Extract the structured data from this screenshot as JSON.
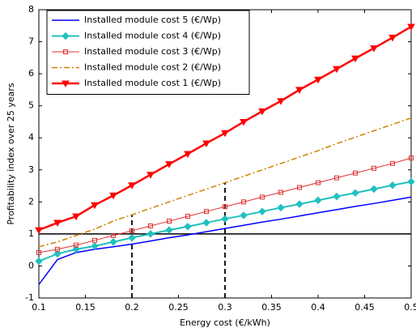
{
  "chart_data": {
    "type": "line",
    "x_label": "Energy cost (€/kWh)",
    "y_label": "Profitability index over 25 years",
    "x": [
      0.1,
      0.12,
      0.14,
      0.16,
      0.18,
      0.2,
      0.22,
      0.24,
      0.26,
      0.28,
      0.3,
      0.32,
      0.34,
      0.36,
      0.38,
      0.4,
      0.42,
      0.44,
      0.46,
      0.48,
      0.5
    ],
    "series": [
      {
        "name": "Installed module cost 5 (€/Wp)",
        "color": "#0000ff",
        "marker": "none",
        "dash": "solid",
        "width": 1.5,
        "values": [
          -0.58,
          0.2,
          0.42,
          0.52,
          0.6,
          0.68,
          0.78,
          0.88,
          0.97,
          1.07,
          1.17,
          1.27,
          1.37,
          1.46,
          1.56,
          1.66,
          1.76,
          1.86,
          1.95,
          2.05,
          2.15
        ]
      },
      {
        "name": "Installed module cost 4 (€/Wp)",
        "color": "#20c0c0",
        "marker": "diamond",
        "dash": "solid",
        "width": 2,
        "values": [
          0.15,
          0.38,
          0.52,
          0.62,
          0.75,
          0.88,
          1.0,
          1.12,
          1.23,
          1.35,
          1.47,
          1.58,
          1.7,
          1.82,
          1.93,
          2.05,
          2.17,
          2.28,
          2.4,
          2.52,
          2.63
        ]
      },
      {
        "name": "Installed module cost 3 (€/Wp)",
        "color": "#e03030",
        "marker": "square",
        "dash": "solid",
        "width": 1,
        "values": [
          0.42,
          0.52,
          0.65,
          0.8,
          0.95,
          1.1,
          1.25,
          1.4,
          1.55,
          1.7,
          1.85,
          2.0,
          2.15,
          2.3,
          2.45,
          2.6,
          2.75,
          2.9,
          3.05,
          3.2,
          3.37
        ]
      },
      {
        "name": "Installed module cost 2 (€/Wp)",
        "color": "#d08000",
        "marker": "none",
        "dash": "dashdot",
        "width": 1.5,
        "values": [
          0.6,
          0.75,
          0.95,
          1.15,
          1.4,
          1.6,
          1.8,
          2.0,
          2.2,
          2.4,
          2.6,
          2.8,
          3.0,
          3.2,
          3.4,
          3.6,
          3.82,
          4.02,
          4.22,
          4.42,
          4.62
        ]
      },
      {
        "name": "Installed module cost 1 (€/Wp)",
        "color": "#ff0000",
        "marker": "triangle-down",
        "dash": "solid",
        "width": 2.5,
        "values": [
          1.12,
          1.35,
          1.55,
          1.9,
          2.2,
          2.52,
          2.85,
          3.18,
          3.5,
          3.83,
          4.15,
          4.5,
          4.83,
          5.15,
          5.5,
          5.82,
          6.15,
          6.48,
          6.8,
          7.13,
          7.47
        ]
      }
    ],
    "xlim": [
      0.1,
      0.5
    ],
    "xticks": [
      0.1,
      0.15,
      0.2,
      0.25,
      0.3,
      0.35,
      0.4,
      0.45,
      0.5
    ],
    "ylim": [
      -1,
      8
    ],
    "yticks": [
      -1,
      0,
      1,
      2,
      3,
      4,
      5,
      6,
      7,
      8
    ],
    "hline": 1,
    "vlines": [
      {
        "x": 0.2,
        "top": 1.6
      },
      {
        "x": 0.3,
        "top": 2.6
      }
    ],
    "legend": "upper-left",
    "grid": false
  }
}
